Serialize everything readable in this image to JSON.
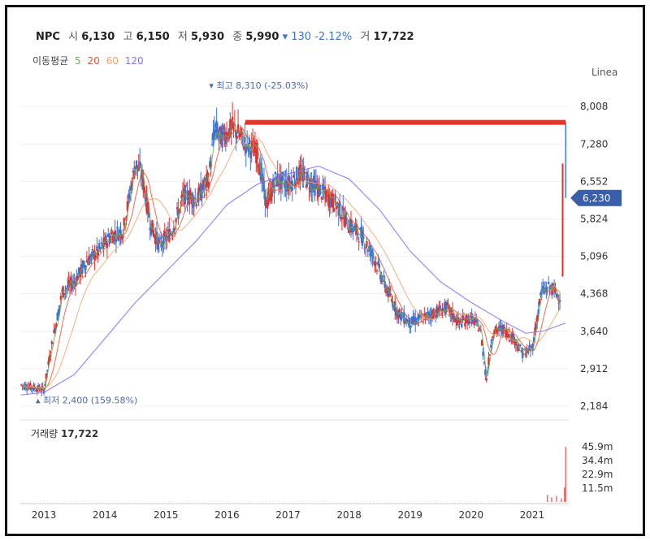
{
  "header": {
    "symbol": "NPC",
    "open_label": "시",
    "open": "6,130",
    "high_label": "고",
    "high": "6,150",
    "low_label": "저",
    "low": "5,930",
    "close_label": "종",
    "close": "5,990",
    "change": "▾ 130 -2.12%",
    "volume_label": "거",
    "volume": "17,722"
  },
  "ma_legend": {
    "label": "이동평균",
    "items": [
      {
        "period": "5",
        "color": "#6ab04c"
      },
      {
        "period": "20",
        "color": "#e8533a"
      },
      {
        "period": "60",
        "color": "#f0a36a"
      },
      {
        "period": "120",
        "color": "#8c6cf0"
      }
    ]
  },
  "scale_label": "Linea",
  "colors": {
    "up": "#e03131",
    "down": "#3a73d4",
    "ma5": "#6ab04c",
    "ma20": "#e8533a",
    "ma60": "#f0a36a",
    "ma120": "#8c6cf0",
    "annotation_line": "#e5352b",
    "current_price_tag": "#3a5fa8"
  },
  "chart_data": {
    "type": "line",
    "price_axis": {
      "ticks": [
        "8,008",
        "7,280",
        "6,552",
        "5,824",
        "5,096",
        "4,368",
        "3,640",
        "2,912",
        "2,184"
      ],
      "tick_values": [
        8008,
        7280,
        6552,
        5824,
        5096,
        4368,
        3640,
        2912,
        2184
      ],
      "range": [
        2184,
        8500
      ]
    },
    "x_axis": {
      "ticks": [
        "2013",
        "2014",
        "2015",
        "2016",
        "2017",
        "2018",
        "2019",
        "2020",
        "2021"
      ],
      "tick_years": [
        2013,
        2014,
        2015,
        2016,
        2017,
        2018,
        2019,
        2020,
        2021
      ],
      "range": [
        2012.6,
        2021.6
      ]
    },
    "current_price": "6,230",
    "current_price_value": 6230,
    "high_annotation": "▾ 최고 8,310 (-25.03%)",
    "high_annotation_value": 8310,
    "low_annotation": "▴ 최저 2,400 (159.58%)",
    "low_annotation_value": 2400,
    "horizontal_line": {
      "value": 7700,
      "from": 2016.3,
      "to": 2021.55
    },
    "price_series": {
      "x": [
        2012.62,
        2012.8,
        2013.0,
        2013.15,
        2013.3,
        2013.5,
        2013.7,
        2013.9,
        2014.1,
        2014.3,
        2014.5,
        2014.6,
        2014.75,
        2014.9,
        2015.1,
        2015.3,
        2015.5,
        2015.7,
        2015.8,
        2015.9,
        2016.1,
        2016.3,
        2016.5,
        2016.65,
        2016.8,
        2017.0,
        2017.2,
        2017.4,
        2017.6,
        2017.8,
        2018.0,
        2018.2,
        2018.4,
        2018.6,
        2018.8,
        2019.0,
        2019.2,
        2019.4,
        2019.6,
        2019.8,
        2020.0,
        2020.15,
        2020.25,
        2020.35,
        2020.5,
        2020.7,
        2020.85,
        2021.0,
        2021.15,
        2021.3,
        2021.45,
        2021.5,
        2021.55
      ],
      "close": [
        2600,
        2550,
        2500,
        3500,
        4400,
        4600,
        5000,
        5200,
        5500,
        5600,
        6900,
        6700,
        5700,
        5300,
        5600,
        6300,
        6200,
        6600,
        7600,
        7400,
        7600,
        7300,
        7100,
        6100,
        6600,
        6500,
        6700,
        6500,
        6300,
        6100,
        5700,
        5500,
        5100,
        4500,
        4000,
        3800,
        3900,
        4000,
        4100,
        3800,
        3900,
        3700,
        2700,
        3600,
        3700,
        3500,
        3200,
        3300,
        4400,
        4500,
        4300,
        4700,
        6230
      ]
    },
    "ma120_series": {
      "x": [
        2012.62,
        2013.0,
        2013.5,
        2014.0,
        2014.5,
        2015.0,
        2015.5,
        2016.0,
        2016.5,
        2017.0,
        2017.5,
        2018.0,
        2018.5,
        2019.0,
        2019.5,
        2020.0,
        2020.5,
        2020.9,
        2021.2,
        2021.55
      ],
      "values": [
        2400,
        2450,
        2800,
        3500,
        4200,
        4800,
        5400,
        6100,
        6500,
        6700,
        6850,
        6600,
        6000,
        5200,
        4600,
        4200,
        3850,
        3600,
        3650,
        3800
      ]
    },
    "volume": {
      "ticks": [
        "45.9m",
        "34.4m",
        "22.9m",
        "11.5m"
      ],
      "tick_values": [
        45.9,
        34.4,
        22.9,
        11.5
      ],
      "label": "거래량",
      "latest": "17,722",
      "spikes": [
        {
          "x": 2021.25,
          "v": 6
        },
        {
          "x": 2021.32,
          "v": 4
        },
        {
          "x": 2021.4,
          "v": 5
        },
        {
          "x": 2021.48,
          "v": 3
        },
        {
          "x": 2021.53,
          "v": 12
        },
        {
          "x": 2021.55,
          "v": 45.9
        }
      ]
    }
  }
}
